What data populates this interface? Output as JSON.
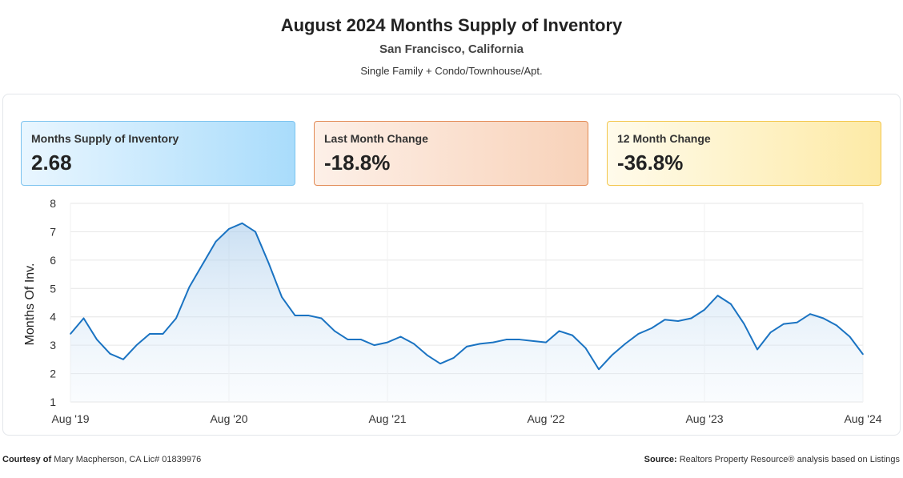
{
  "header": {
    "title": "August 2024 Months Supply of Inventory",
    "location": "San Francisco, California",
    "property_types": "Single Family + Condo/Townhouse/Apt."
  },
  "cards": [
    {
      "label": "Months Supply of Inventory",
      "value": "2.68"
    },
    {
      "label": "Last Month Change",
      "value": "-18.8%"
    },
    {
      "label": "12 Month Change",
      "value": "-36.8%"
    }
  ],
  "footer": {
    "courtesy_label": "Courtesy of",
    "courtesy_text": "Mary Macpherson, CA Lic# 01839976",
    "source_label": "Source:",
    "source_text": "Realtors Property Resource® analysis based on Listings"
  },
  "colors": {
    "line": "#1a73c2",
    "grid": "#e6e6e6"
  },
  "chart_data": {
    "type": "area",
    "title": "August 2024 Months Supply of Inventory",
    "ylabel": "Months Of Inv.",
    "xlabel": "",
    "ylim": [
      1,
      8
    ],
    "yticks": [
      1,
      2,
      3,
      4,
      5,
      6,
      7,
      8
    ],
    "xtick_labels": [
      "Aug '19",
      "Aug '20",
      "Aug '21",
      "Aug '22",
      "Aug '23",
      "Aug '24"
    ],
    "xtick_index": [
      0,
      12,
      24,
      36,
      48,
      60
    ],
    "series": [
      {
        "name": "Months Supply of Inventory",
        "values": [
          3.4,
          3.95,
          3.2,
          2.7,
          2.5,
          3.0,
          3.4,
          3.4,
          3.95,
          5.05,
          5.85,
          6.65,
          7.1,
          7.3,
          7.0,
          5.9,
          4.7,
          4.05,
          4.05,
          3.95,
          3.5,
          3.2,
          3.2,
          3.0,
          3.1,
          3.3,
          3.05,
          2.65,
          2.35,
          2.55,
          2.95,
          3.05,
          3.1,
          3.2,
          3.2,
          3.15,
          3.1,
          3.5,
          3.35,
          2.9,
          2.15,
          2.65,
          3.05,
          3.4,
          3.6,
          3.9,
          3.85,
          3.95,
          4.25,
          4.75,
          4.45,
          3.75,
          2.85,
          3.45,
          3.75,
          3.8,
          4.1,
          3.95,
          3.7,
          3.3,
          2.68
        ]
      }
    ]
  }
}
